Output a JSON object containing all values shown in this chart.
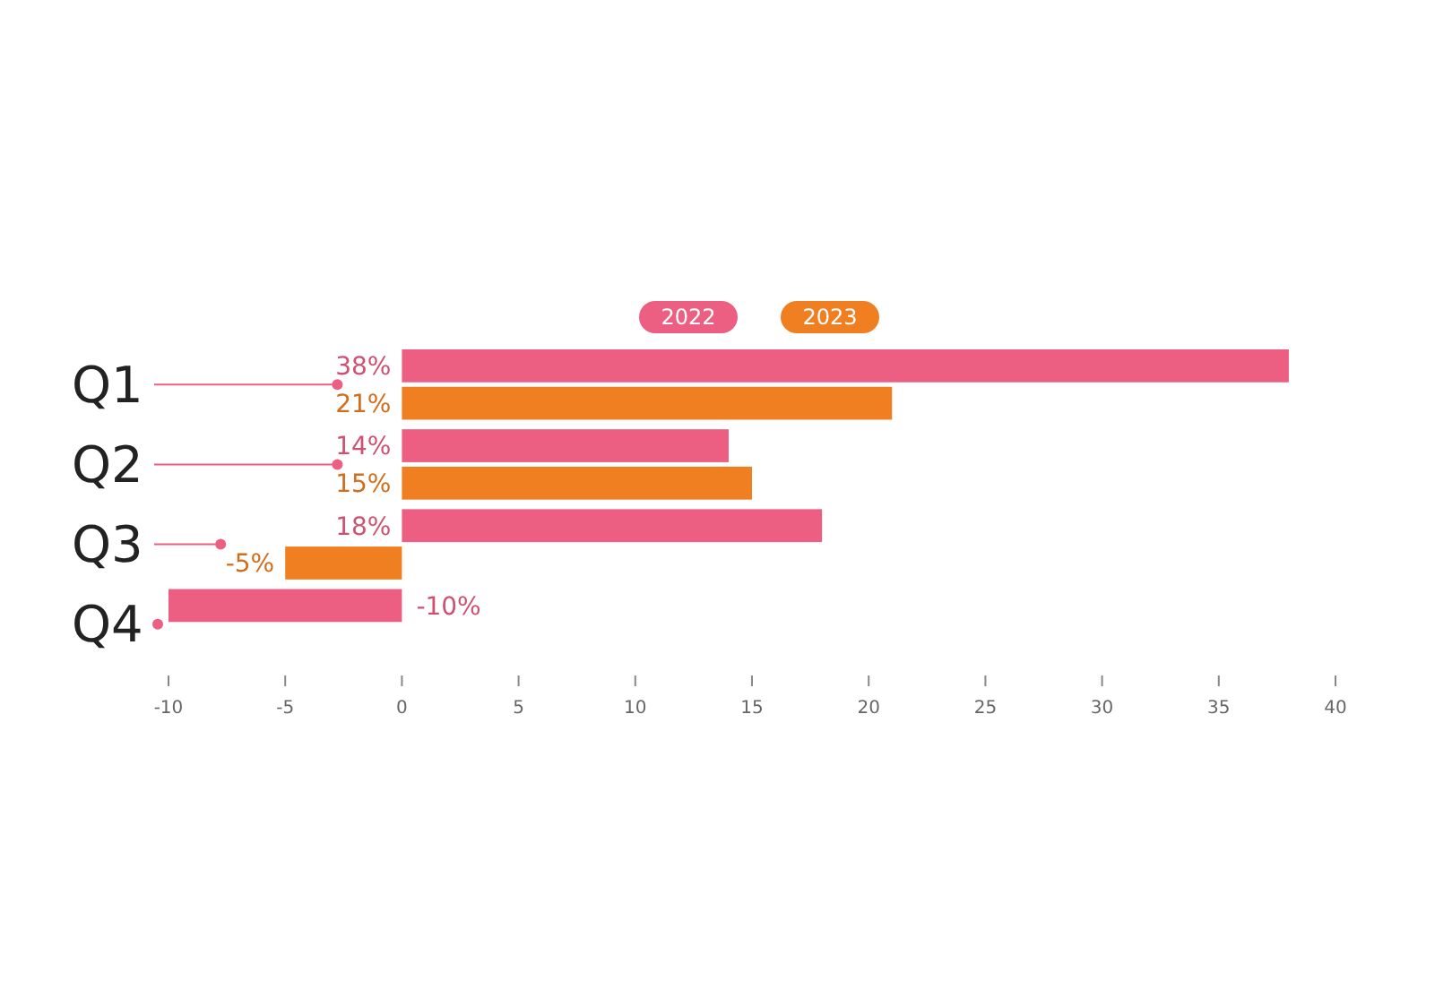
{
  "chart_data": {
    "type": "bar",
    "orientation": "horizontal",
    "categories": [
      "Q1",
      "Q2",
      "Q3",
      "Q4"
    ],
    "series": [
      {
        "name": "2022",
        "color": "#ec5f83",
        "values": [
          38,
          14,
          18,
          -10
        ],
        "value_labels": [
          "38%",
          "14%",
          "18%",
          "-10%"
        ]
      },
      {
        "name": "2023",
        "color": "#f07f22",
        "values": [
          21,
          15,
          -5,
          null
        ],
        "value_labels": [
          "21%",
          "15%",
          "-5%",
          null
        ]
      }
    ],
    "xlim": [
      -10,
      40
    ],
    "xticks": [
      -10,
      -5,
      0,
      5,
      10,
      15,
      20,
      25,
      30,
      35,
      40
    ],
    "legend": "top",
    "grid": false
  }
}
